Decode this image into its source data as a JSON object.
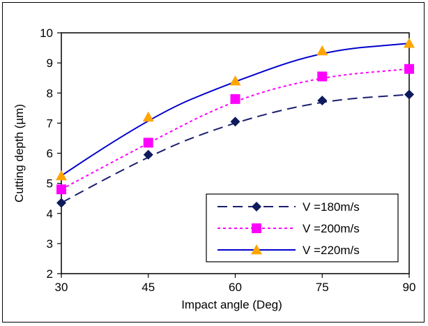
{
  "chart_data": {
    "type": "line",
    "title": "",
    "xlabel": "Impact angle (Deg)",
    "ylabel": "Cutting depth (µm)",
    "x": [
      30,
      45,
      60,
      75,
      90
    ],
    "x_tick_labels": [
      "30",
      "45",
      "60",
      "75",
      "90"
    ],
    "xlim": [
      30,
      90
    ],
    "ylim": [
      2,
      10
    ],
    "y_ticks": [
      2,
      3,
      4,
      5,
      6,
      7,
      8,
      9,
      10
    ],
    "y_tick_labels": [
      "2",
      "3",
      "4",
      "5",
      "6",
      "7",
      "8",
      "9",
      "10"
    ],
    "grid": false,
    "legend_position": "bottom-right",
    "series": [
      {
        "name": "V =180m/s",
        "values": [
          4.35,
          5.95,
          7.05,
          7.75,
          7.95
        ],
        "color": "#1a1f6e",
        "line_style": "long-dash",
        "marker": "diamond",
        "marker_color": "#0d1a5c"
      },
      {
        "name": "V =200m/s",
        "values": [
          4.8,
          6.35,
          7.8,
          8.55,
          8.8
        ],
        "color": "#ff00ff",
        "line_style": "dotted",
        "marker": "square",
        "marker_color": "#ff00ff"
      },
      {
        "name": "V =220m/s",
        "values": [
          5.25,
          7.2,
          8.4,
          9.4,
          9.65
        ],
        "color": "#0000cc",
        "line_style": "solid",
        "marker": "triangle",
        "marker_color": "#ffa500"
      }
    ]
  }
}
